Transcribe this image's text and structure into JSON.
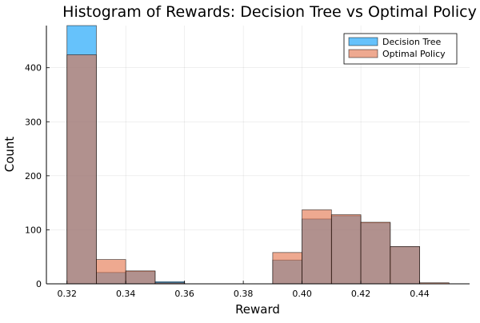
{
  "chart_data": {
    "type": "bar",
    "title": "Histogram of Rewards: Decision Tree vs Optimal Policy",
    "xlabel": "Reward",
    "ylabel": "Count",
    "xlim": [
      0.313,
      0.457
    ],
    "ylim": [
      0,
      478
    ],
    "xticks": [
      0.32,
      0.34,
      0.36,
      0.38,
      0.4,
      0.42,
      0.44
    ],
    "xtick_labels": [
      "0.32",
      "0.34",
      "0.36",
      "0.38",
      "0.40",
      "0.42",
      "0.44"
    ],
    "yticks": [
      0,
      100,
      200,
      300,
      400
    ],
    "ytick_labels": [
      "0",
      "100",
      "200",
      "300",
      "400"
    ],
    "grid": true,
    "legend_position": "top-right",
    "bin_width": 0.01,
    "bin_starts": [
      0.32,
      0.33,
      0.34,
      0.35,
      0.36,
      0.37,
      0.38,
      0.39,
      0.4,
      0.41,
      0.42,
      0.43,
      0.44
    ],
    "series": [
      {
        "name": "Decision Tree",
        "color": "#009af9",
        "opacity": 0.6,
        "values": [
          480,
          21,
          23,
          4,
          0,
          0,
          0,
          44,
          120,
          126,
          113,
          69,
          0
        ]
      },
      {
        "name": "Optimal Policy",
        "color": "#e26f46",
        "opacity": 0.6,
        "values": [
          424,
          45,
          24,
          2,
          0,
          0,
          0,
          58,
          137,
          128,
          114,
          69,
          2
        ]
      }
    ]
  }
}
